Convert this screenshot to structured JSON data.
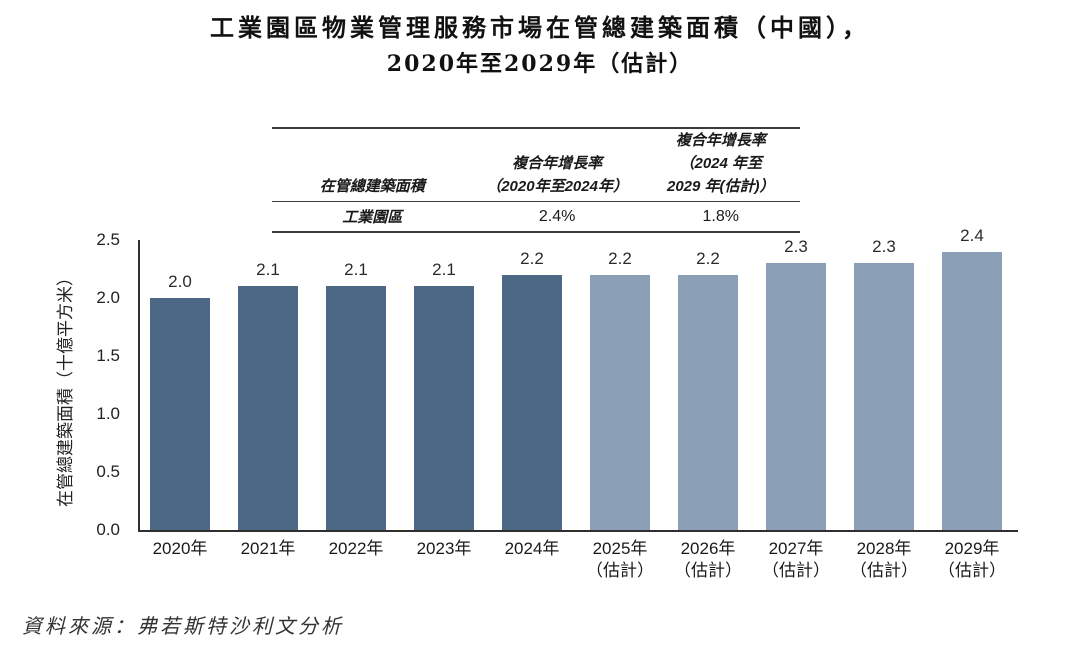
{
  "title": {
    "line1": "工業園區物業管理服務市場在管總建築面積（中國），",
    "line2": "2020年至2029年（估計）"
  },
  "table": {
    "col1_header": "在管總建築面積",
    "col2_header": "複合年增長率\n（2020年至2024年）",
    "col3_header": "複合年增長率\n（2024 年至\n2029 年(估計)）",
    "row": {
      "label": "工業園區",
      "cagr_2020_2024": "2.4%",
      "cagr_2024_2029": "1.8%"
    }
  },
  "chart_data": {
    "type": "bar",
    "title": "工業園區物業管理服務市場在管總建築面積（中國），2020年至2029年（估計）",
    "ylabel": "在管總建築面積（十億平方米）",
    "xlabel": "",
    "ylim": [
      0,
      2.5
    ],
    "yticks": [
      "0.0",
      "0.5",
      "1.0",
      "1.5",
      "2.0",
      "2.5"
    ],
    "grid": false,
    "legend": "none",
    "categories": [
      "2020年",
      "2021年",
      "2022年",
      "2023年",
      "2024年",
      "2025年",
      "2026年",
      "2027年",
      "2028年",
      "2029年"
    ],
    "category_notes": [
      "",
      "",
      "",
      "",
      "",
      "（估計）",
      "（估計）",
      "（估計）",
      "（估計）",
      "（估計）"
    ],
    "values": [
      2.0,
      2.1,
      2.1,
      2.1,
      2.2,
      2.2,
      2.2,
      2.3,
      2.3,
      2.4
    ],
    "estimated_from_index": 5,
    "colors": {
      "actual": "#4d6787",
      "estimated": "#8ba0b6",
      "axis": "#2f2f2f",
      "value_label": "#2b2b2b"
    }
  },
  "source": "資料來源：弗若斯特沙利文分析"
}
